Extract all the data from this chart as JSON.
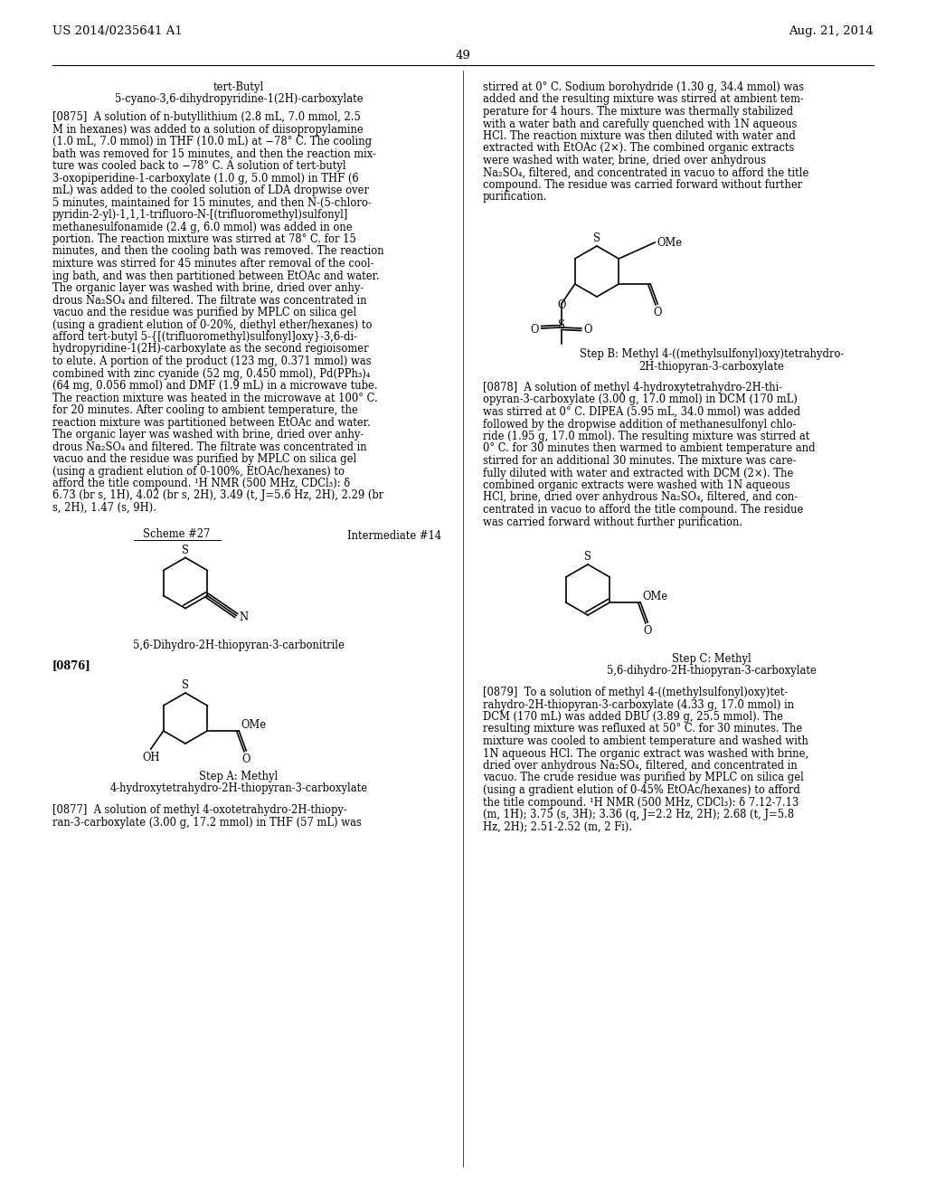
{
  "page_header_left": "US 2014/0235641 A1",
  "page_header_right": "Aug. 21, 2014",
  "page_number": "49",
  "background_color": "#ffffff",
  "p875_lines": [
    "[0875]  A solution of n-butyllithium (2.8 mL, 7.0 mmol, 2.5",
    "M in hexanes) was added to a solution of diisopropylamine",
    "(1.0 mL, 7.0 mmol) in THF (10.0 mL) at −78° C. The cooling",
    "bath was removed for 15 minutes, and then the reaction mix-",
    "ture was cooled back to −78° C. A solution of tert-butyl",
    "3-oxopiperidine-1-carboxylate (1.0 g, 5.0 mmol) in THF (6",
    "mL) was added to the cooled solution of LDA dropwise over",
    "5 minutes, maintained for 15 minutes, and then N-(5-chloro-",
    "pyridin-2-yl)-1,1,1-trifluoro-N-[(trifluoromethyl)sulfonyl]",
    "methanesulfonamide (2.4 g, 6.0 mmol) was added in one",
    "portion. The reaction mixture was stirred at 78° C. for 15",
    "minutes, and then the cooling bath was removed. The reaction",
    "mixture was stirred for 45 minutes after removal of the cool-",
    "ing bath, and was then partitioned between EtOAc and water.",
    "The organic layer was washed with brine, dried over anhy-",
    "drous Na₂SO₄ and filtered. The filtrate was concentrated in",
    "vacuo and the residue was purified by MPLC on silica gel",
    "(using a gradient elution of 0-20%, diethyl ether/hexanes) to",
    "afford tert-butyl 5-{[(trifluoromethyl)sulfonyl]oxy}-3,6-di-",
    "hydropyridine-1(2H)-carboxylate as the second regioisomer",
    "to elute. A portion of the product (123 mg, 0.371 mmol) was",
    "combined with zinc cyanide (52 mg, 0.450 mmol), Pd(PPh₃)₄",
    "(64 mg, 0.056 mmol) and DMF (1.9 mL) in a microwave tube.",
    "The reaction mixture was heated in the microwave at 100° C.",
    "for 20 minutes. After cooling to ambient temperature, the",
    "reaction mixture was partitioned between EtOAc and water.",
    "The organic layer was washed with brine, dried over anhy-",
    "drous Na₂SO₄ and filtered. The filtrate was concentrated in",
    "vacuo and the residue was purified by MPLC on silica gel",
    "(using a gradient elution of 0-100%, EtOAc/hexanes) to",
    "afford the title compound. ¹H NMR (500 MHz, CDCl₃): δ",
    "6.73 (br s, 1H), 4.02 (br s, 2H), 3.49 (t, J=5.6 Hz, 2H), 2.29 (br",
    "s, 2H), 1.47 (s, 9H)."
  ],
  "r877_lines": [
    "stirred at 0° C. Sodium borohydride (1.30 g, 34.4 mmol) was",
    "added and the resulting mixture was stirred at ambient tem-",
    "perature for 4 hours. The mixture was thermally stabilized",
    "with a water bath and carefully quenched with 1N aqueous",
    "HCl. The reaction mixture was then diluted with water and",
    "extracted with EtOAc (2×). The combined organic extracts",
    "were washed with water, brine, dried over anhydrous",
    "Na₂SO₄, filtered, and concentrated in vacuo to afford the title",
    "compound. The residue was carried forward without further",
    "purification."
  ],
  "p878_lines": [
    "[0878]  A solution of methyl 4-hydroxytetrahydro-2H-thi-",
    "opyran-3-carboxylate (3.00 g, 17.0 mmol) in DCM (170 mL)",
    "was stirred at 0° C. DIPEA (5.95 mL, 34.0 mmol) was added",
    "followed by the dropwise addition of methanesulfonyl chlo-",
    "ride (1.95 g, 17.0 mmol). The resulting mixture was stirred at",
    "0° C. for 30 minutes then warmed to ambient temperature and",
    "stirred for an additional 30 minutes. The mixture was care-",
    "fully diluted with water and extracted with DCM (2×). The",
    "combined organic extracts were washed with 1N aqueous",
    "HCl, brine, dried over anhydrous Na₂SO₄, filtered, and con-",
    "centrated in vacuo to afford the title compound. The residue",
    "was carried forward without further purification."
  ],
  "p879_lines": [
    "[0879]  To a solution of methyl 4-((methylsulfonyl)oxy)tet-",
    "rahydro-2H-thiopyran-3-carboxylate (4.33 g, 17.0 mmol) in",
    "DCM (170 mL) was added DBU (3.89 g, 25.5 mmol). The",
    "resulting mixture was refluxed at 50° C. for 30 minutes. The",
    "mixture was cooled to ambient temperature and washed with",
    "1N aqueous HCl. The organic extract was washed with brine,",
    "dried over anhydrous Na₂SO₄, filtered, and concentrated in",
    "vacuo. The crude residue was purified by MPLC on silica gel",
    "(using a gradient elution of 0-45% EtOAc/hexanes) to afford",
    "the title compound. ¹H NMR (500 MHz, CDCl₃): δ 7.12-7.13",
    "(m, 1H); 3.75 (s, 3H); 3.36 (q, J=2.2 Hz, 2H); 2.68 (t, J=5.8",
    "Hz, 2H); 2.51-2.52 (m, 2 Fi)."
  ],
  "p877_left_lines": [
    "[0877]  A solution of methyl 4-oxotetrahydro-2H-thiopy-",
    "ran-3-carboxylate (3.00 g, 17.2 mmol) in THF (57 mL) was"
  ]
}
